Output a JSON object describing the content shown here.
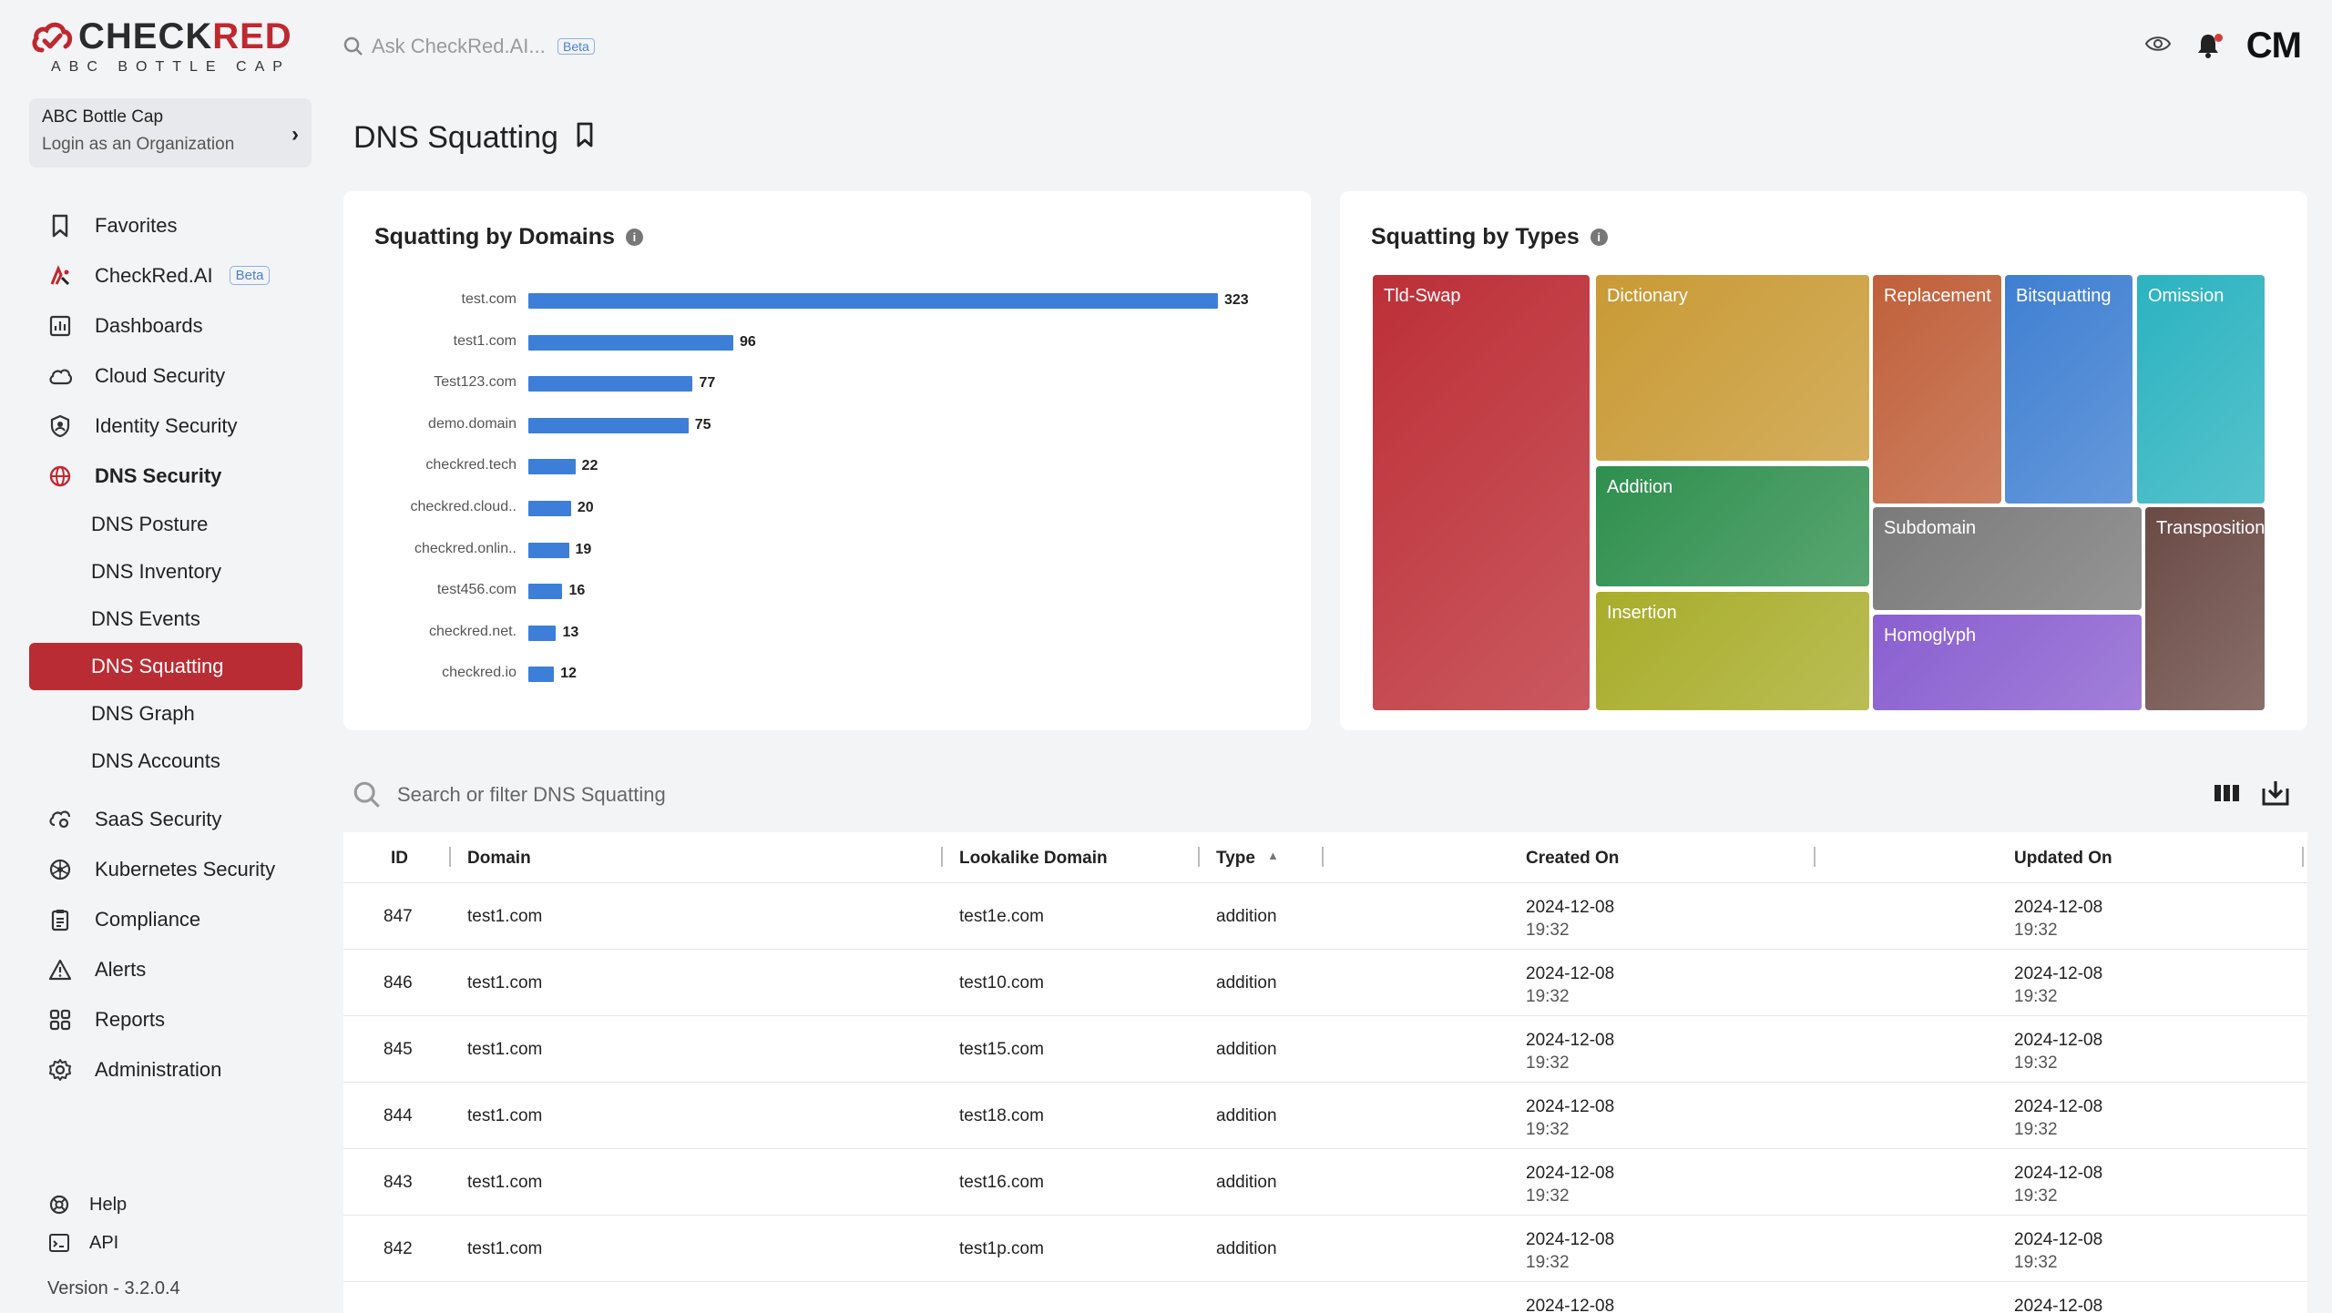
{
  "brand": {
    "name_prefix": "CHECK",
    "name_suffix": "RED",
    "tagline": "ABC BOTTLE CAP"
  },
  "org": {
    "name": "ABC Bottle Cap",
    "sub": "Login as an Organization"
  },
  "topbar": {
    "search_placeholder": "Ask CheckRed.AI...",
    "beta": "Beta",
    "avatar": "CM"
  },
  "nav": {
    "favorites": "Favorites",
    "checkred_ai": "CheckRed.AI",
    "checkred_ai_badge": "Beta",
    "dashboards": "Dashboards",
    "cloud_security": "Cloud Security",
    "identity_security": "Identity Security",
    "dns_security": "DNS Security",
    "dns_sub": [
      "DNS Posture",
      "DNS Inventory",
      "DNS Events",
      "DNS Squatting",
      "DNS Graph",
      "DNS Accounts"
    ],
    "saas_security": "SaaS Security",
    "kubernetes_security": "Kubernetes Security",
    "compliance": "Compliance",
    "alerts": "Alerts",
    "reports": "Reports",
    "administration": "Administration",
    "help": "Help",
    "api": "API",
    "version": "Version - 3.2.0.4"
  },
  "page": {
    "title": "DNS Squatting"
  },
  "chart_data": [
    {
      "type": "bar",
      "title": "Squatting by Domains",
      "categories": [
        "test.com",
        "test1.com",
        "Test123.com",
        "demo.domain",
        "checkred.tech",
        "checkred.cloud..",
        "checkred.onlin..",
        "test456.com",
        "checkred.net.",
        "checkred.io"
      ],
      "values": [
        323,
        96,
        77,
        75,
        22,
        20,
        19,
        16,
        13,
        12
      ],
      "orientation": "horizontal"
    },
    {
      "type": "treemap",
      "title": "Squatting by Types",
      "categories": [
        "Tld-Swap",
        "Dictionary",
        "Addition",
        "Insertion",
        "Replacement",
        "Bitsquatting",
        "Omission",
        "Subdomain",
        "Homoglyph",
        "Transposition"
      ],
      "colors": [
        "#bd2f37",
        "#c99a35",
        "#2f8f4e",
        "#a8ad2a",
        "#c0603a",
        "#3f7fd2",
        "#2bb3c0",
        "#7a7a7a",
        "#8a5fd0",
        "#6b4a45"
      ]
    }
  ],
  "table": {
    "search_placeholder": "Search or filter DNS Squatting",
    "columns": [
      "ID",
      "Domain",
      "Lookalike Domain",
      "Type",
      "Created On",
      "Updated On"
    ],
    "rows": [
      {
        "id": "847",
        "domain": "test1.com",
        "lookalike": "test1e.com",
        "type": "addition",
        "created_date": "2024-12-08",
        "created_time": "19:32",
        "updated_date": "2024-12-08",
        "updated_time": "19:32"
      },
      {
        "id": "846",
        "domain": "test1.com",
        "lookalike": "test10.com",
        "type": "addition",
        "created_date": "2024-12-08",
        "created_time": "19:32",
        "updated_date": "2024-12-08",
        "updated_time": "19:32"
      },
      {
        "id": "845",
        "domain": "test1.com",
        "lookalike": "test15.com",
        "type": "addition",
        "created_date": "2024-12-08",
        "created_time": "19:32",
        "updated_date": "2024-12-08",
        "updated_time": "19:32"
      },
      {
        "id": "844",
        "domain": "test1.com",
        "lookalike": "test18.com",
        "type": "addition",
        "created_date": "2024-12-08",
        "created_time": "19:32",
        "updated_date": "2024-12-08",
        "updated_time": "19:32"
      },
      {
        "id": "843",
        "domain": "test1.com",
        "lookalike": "test16.com",
        "type": "addition",
        "created_date": "2024-12-08",
        "created_time": "19:32",
        "updated_date": "2024-12-08",
        "updated_time": "19:32"
      },
      {
        "id": "842",
        "domain": "test1.com",
        "lookalike": "test1p.com",
        "type": "addition",
        "created_date": "2024-12-08",
        "created_time": "19:32",
        "updated_date": "2024-12-08",
        "updated_time": "19:32"
      },
      {
        "id": "",
        "domain": "",
        "lookalike": "",
        "type": "",
        "created_date": "2024-12-08",
        "created_time": "",
        "updated_date": "2024-12-08",
        "updated_time": ""
      }
    ]
  }
}
